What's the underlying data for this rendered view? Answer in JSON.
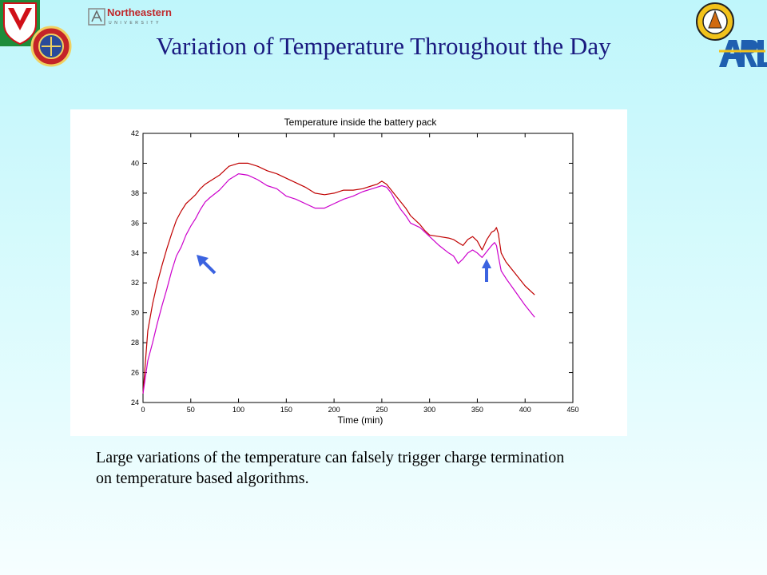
{
  "slide": {
    "title": "Variation of Temperature Throughout the Day",
    "caption_lines": [
      "Large variations of the temperature can falsely trigger charge termination",
      "on temperature based algorithms."
    ]
  },
  "logos": {
    "northeastern": "Northeastern",
    "northeastern_sub": "UNIVERSITY",
    "arl": "ARL"
  },
  "chart_data": {
    "type": "line",
    "title": "Temperature inside the battery pack",
    "xlabel": "Time (min)",
    "ylabel": "",
    "xlim": [
      0,
      450
    ],
    "ylim": [
      24,
      42
    ],
    "x_ticks": [
      0,
      50,
      100,
      150,
      200,
      250,
      300,
      350,
      400,
      450
    ],
    "y_ticks": [
      24,
      26,
      28,
      30,
      32,
      34,
      36,
      38,
      40,
      42
    ],
    "grid": false,
    "series": [
      {
        "color": "#c00000",
        "x": [
          0,
          5,
          10,
          15,
          20,
          25,
          30,
          35,
          40,
          45,
          50,
          55,
          60,
          65,
          70,
          80,
          90,
          100,
          110,
          120,
          130,
          140,
          150,
          160,
          170,
          180,
          190,
          200,
          210,
          220,
          230,
          240,
          245,
          250,
          255,
          260,
          265,
          270,
          275,
          280,
          285,
          290,
          295,
          300,
          310,
          320,
          325,
          330,
          335,
          340,
          345,
          350,
          355,
          360,
          365,
          368,
          370,
          372,
          375,
          380,
          390,
          400,
          410
        ],
        "values": [
          24.6,
          28.8,
          30.6,
          32.0,
          33.2,
          34.3,
          35.3,
          36.2,
          36.8,
          37.3,
          37.6,
          37.9,
          38.3,
          38.6,
          38.8,
          39.2,
          39.8,
          40.0,
          40.0,
          39.8,
          39.5,
          39.3,
          39.0,
          38.7,
          38.4,
          38.0,
          37.9,
          38.0,
          38.2,
          38.2,
          38.3,
          38.5,
          38.6,
          38.8,
          38.6,
          38.2,
          37.8,
          37.4,
          37.0,
          36.5,
          36.2,
          35.9,
          35.5,
          35.2,
          35.1,
          35.0,
          34.9,
          34.7,
          34.5,
          34.9,
          35.1,
          34.8,
          34.2,
          34.9,
          35.4,
          35.5,
          35.7,
          35.3,
          34.0,
          33.4,
          32.6,
          31.8,
          31.2
        ]
      },
      {
        "color": "#cc00cc",
        "x": [
          0,
          5,
          10,
          15,
          20,
          25,
          30,
          35,
          40,
          45,
          50,
          55,
          60,
          65,
          70,
          80,
          90,
          100,
          110,
          120,
          130,
          140,
          150,
          160,
          170,
          180,
          190,
          200,
          210,
          220,
          230,
          240,
          245,
          250,
          255,
          260,
          265,
          270,
          275,
          280,
          290,
          300,
          310,
          320,
          325,
          330,
          335,
          340,
          345,
          350,
          355,
          360,
          365,
          368,
          370,
          372,
          375,
          380,
          390,
          400,
          410
        ],
        "values": [
          24.6,
          26.8,
          28.0,
          29.3,
          30.5,
          31.6,
          32.8,
          33.8,
          34.4,
          35.2,
          35.8,
          36.3,
          36.9,
          37.4,
          37.7,
          38.2,
          38.9,
          39.3,
          39.2,
          38.9,
          38.5,
          38.3,
          37.8,
          37.6,
          37.3,
          37.0,
          37.0,
          37.3,
          37.6,
          37.8,
          38.1,
          38.3,
          38.4,
          38.5,
          38.4,
          38.0,
          37.4,
          36.9,
          36.5,
          36.0,
          35.7,
          35.1,
          34.5,
          34.0,
          33.8,
          33.3,
          33.6,
          34.0,
          34.2,
          34.0,
          33.7,
          34.1,
          34.5,
          34.7,
          34.5,
          33.8,
          32.8,
          32.3,
          31.4,
          30.5,
          29.7
        ]
      }
    ]
  }
}
